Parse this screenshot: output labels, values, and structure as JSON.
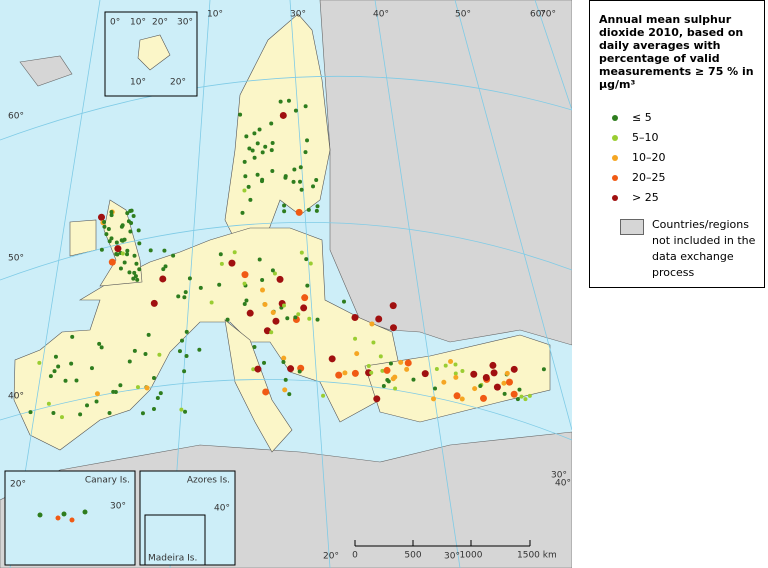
{
  "legend": {
    "title": "Annual mean sulphur dioxide 2010, based on daily averages with percentage of valid measurements  ≥ 75 % in µg/m³",
    "items": [
      {
        "label": "≤ 5",
        "color": "#2e7d1e"
      },
      {
        "label": "5–10",
        "color": "#9acd32"
      },
      {
        "label": "10–20",
        "color": "#f5a623"
      },
      {
        "label": "20–25",
        "color": "#f05a14"
      },
      {
        "label": "> 25",
        "color": "#a01010"
      }
    ],
    "excluded": "Countries/regions not included in the data exchange process"
  },
  "graticule_labels": [
    "10°",
    "30°",
    "40°",
    "50°",
    "60°",
    "70°",
    "60°",
    "50°",
    "40°",
    "20°",
    "30°",
    "40°",
    "30°"
  ],
  "insets": {
    "svalbard": [
      "0°",
      "10°",
      "20°",
      "30°",
      "10°",
      "20°"
    ],
    "canary": {
      "title": "Canary Is.",
      "labels": [
        "30°",
        "20°"
      ]
    },
    "azores": {
      "title": "Azores Is.",
      "labels": [
        "40°"
      ]
    },
    "madeira": {
      "title": "Madeira Is."
    }
  },
  "scale_bar": [
    "0",
    "500",
    "1000",
    "1500 km"
  ]
}
